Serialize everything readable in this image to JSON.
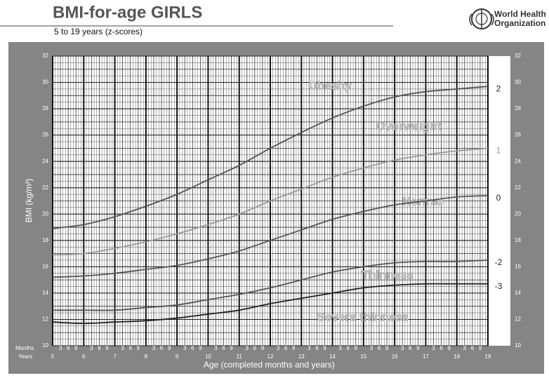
{
  "header": {
    "organization": [
      "World Health",
      "Organization"
    ]
  },
  "chart_data": {
    "type": "line",
    "title": "BMI-for-age  GIRLS",
    "subtitle": "5 to 19 years (z-scores)",
    "y_label": "BMI (kg/m²)",
    "x_label": "Age (completed months and years)",
    "months_label": "Months",
    "years_label": "Years",
    "month_ticks": [
      3,
      6,
      9
    ],
    "x": [
      5,
      6,
      7,
      8,
      9,
      10,
      11,
      12,
      13,
      14,
      15,
      16,
      17,
      18,
      19
    ],
    "xlim": [
      5,
      19
    ],
    "xticks": [
      5,
      6,
      7,
      8,
      9,
      10,
      11,
      12,
      13,
      14,
      15,
      16,
      17,
      18,
      19
    ],
    "ylim": [
      10,
      32
    ],
    "yticks": [
      10,
      12,
      14,
      16,
      18,
      20,
      22,
      24,
      26,
      28,
      30,
      32
    ],
    "grid": true,
    "series": [
      {
        "name": "2",
        "color": "#555555",
        "values": [
          18.9,
          19.2,
          19.8,
          20.6,
          21.5,
          22.6,
          23.7,
          25.0,
          26.2,
          27.3,
          28.2,
          28.9,
          29.3,
          29.5,
          29.7
        ]
      },
      {
        "name": "1",
        "color": "#9a9a9a",
        "values": [
          16.9,
          17.0,
          17.4,
          17.9,
          18.5,
          19.2,
          20.0,
          21.0,
          21.9,
          22.8,
          23.5,
          24.1,
          24.5,
          24.8,
          25.0
        ]
      },
      {
        "name": "0",
        "color": "#555555",
        "values": [
          15.2,
          15.3,
          15.5,
          15.8,
          16.1,
          16.6,
          17.2,
          18.0,
          18.8,
          19.6,
          20.2,
          20.7,
          21.0,
          21.3,
          21.4
        ]
      },
      {
        "name": "-2",
        "color": "#555555",
        "values": [
          12.7,
          12.7,
          12.7,
          12.9,
          13.1,
          13.5,
          13.9,
          14.4,
          15.0,
          15.6,
          16.0,
          16.3,
          16.4,
          16.4,
          16.5
        ]
      },
      {
        "name": "-3",
        "color": "#222222",
        "values": [
          11.8,
          11.7,
          11.8,
          11.9,
          12.1,
          12.4,
          12.7,
          13.2,
          13.6,
          14.0,
          14.4,
          14.6,
          14.7,
          14.7,
          14.7
        ]
      }
    ],
    "annotations": [
      "Obesity",
      "Overweight",
      "Normal",
      "Thinness",
      "Severe thinness"
    ]
  }
}
